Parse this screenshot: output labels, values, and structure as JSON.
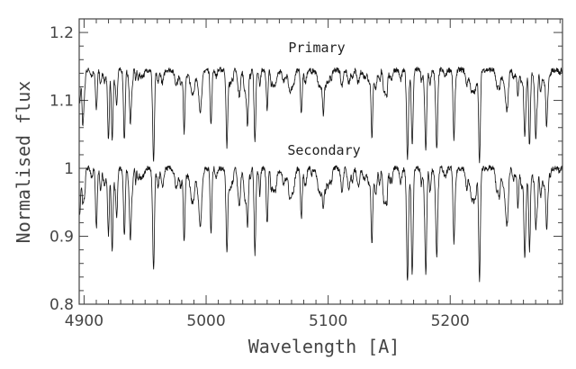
{
  "chart_data": {
    "type": "line",
    "title": "",
    "xlabel": "Wavelength [A]",
    "ylabel": "Normalised flux",
    "xlim": [
      4896,
      5292
    ],
    "ylim": [
      0.8,
      1.22
    ],
    "xticks": [
      4900,
      5000,
      5100,
      5200
    ],
    "xtick_labels": [
      "4900",
      "5000",
      "5100",
      "5200"
    ],
    "yticks": [
      0.8,
      0.9,
      1.0,
      1.1,
      1.2
    ],
    "ytick_labels": [
      "0.8",
      "0.9",
      "1",
      "1.1",
      "1.2"
    ],
    "x_minor_step": 10,
    "y_minor_step": 0.02,
    "grid": false,
    "line_color": "#111111",
    "series": [
      {
        "name": "Primary",
        "continuum": 1.145,
        "absorption_lines": {
          "wavelength": [
            4899,
            4910,
            4920,
            4923,
            4933,
            4938,
            4957,
            4982,
            5004,
            5017,
            5034,
            5040,
            5050,
            5078,
            5096,
            5136,
            5165,
            5169,
            5180,
            5189,
            5203,
            5224,
            5261,
            5265,
            5270,
            5279
          ],
          "min_flux": [
            1.064,
            1.088,
            1.048,
            1.044,
            1.042,
            1.084,
            1.024,
            1.053,
            1.064,
            1.035,
            1.079,
            1.04,
            1.088,
            1.079,
            1.081,
            1.068,
            1.029,
            1.048,
            1.031,
            1.053,
            1.053,
            1.011,
            1.075,
            1.033,
            1.057,
            1.064
          ]
        }
      },
      {
        "name": "Secondary",
        "continuum": 1.0,
        "absorption_lines": {
          "wavelength": [
            4899,
            4910,
            4920,
            4923,
            4933,
            4938,
            4957,
            4982,
            5004,
            5017,
            5034,
            5040,
            5050,
            5078,
            5096,
            5136,
            5165,
            5169,
            5180,
            5189,
            5203,
            5224,
            5261,
            5265,
            5270,
            5279
          ],
          "min_flux": [
            0.95,
            0.915,
            0.91,
            0.88,
            0.9,
            0.92,
            0.87,
            0.89,
            0.905,
            0.88,
            0.94,
            0.875,
            0.92,
            0.925,
            0.94,
            0.92,
            0.855,
            0.86,
            0.85,
            0.91,
            0.905,
            0.84,
            0.91,
            0.88,
            0.93,
            0.915
          ]
        }
      }
    ]
  }
}
